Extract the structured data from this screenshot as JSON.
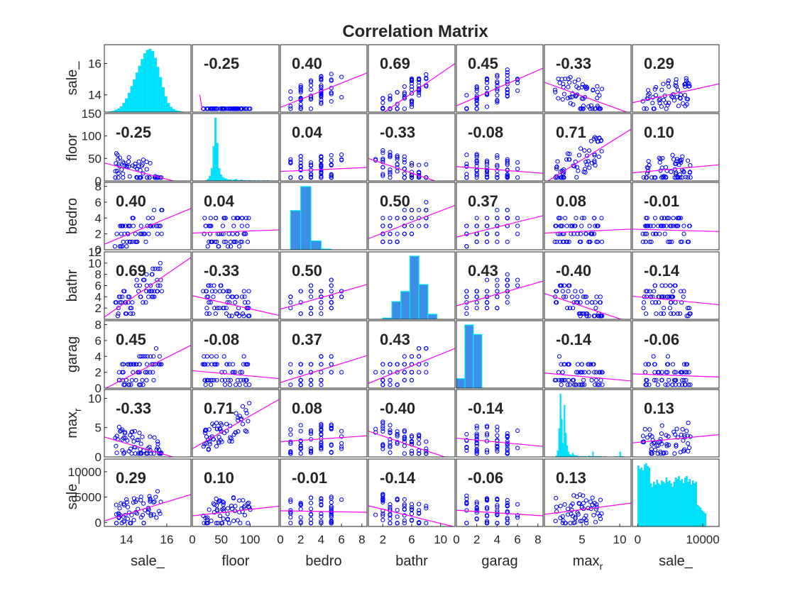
{
  "chart_data": {
    "type": "scatter-matrix",
    "title": "Correlation Matrix",
    "variables": [
      "sale_",
      "floor",
      "bedro",
      "bathr",
      "garag",
      "max_r",
      "sale_"
    ],
    "row_labels": [
      {
        "base": "sale_",
        "sub": ""
      },
      {
        "base": "floor",
        "sub": ""
      },
      {
        "base": "bedro",
        "sub": ""
      },
      {
        "base": "bathr",
        "sub": ""
      },
      {
        "base": "garag",
        "sub": ""
      },
      {
        "base": "max",
        "sub": "r"
      },
      {
        "base": "sale_",
        "sub": ""
      }
    ],
    "col_labels": [
      {
        "base": "sale_",
        "sub": ""
      },
      {
        "base": "floor",
        "sub": ""
      },
      {
        "base": "bedro",
        "sub": ""
      },
      {
        "base": "bathr",
        "sub": ""
      },
      {
        "base": "garag",
        "sub": ""
      },
      {
        "base": "max",
        "sub": "r"
      },
      {
        "base": "sale_",
        "sub": ""
      }
    ],
    "ranges": [
      [
        12.9,
        17.2
      ],
      [
        0,
        150
      ],
      [
        0,
        8.5
      ],
      [
        0,
        12
      ],
      [
        0,
        8.5
      ],
      [
        0,
        11.5
      ],
      [
        -800,
        12500
      ]
    ],
    "x_ticks": [
      [
        14,
        16
      ],
      [
        0,
        50,
        100
      ],
      [
        0,
        2,
        4,
        6,
        8
      ],
      [
        2,
        6,
        10
      ],
      [
        0,
        2,
        4,
        6,
        8
      ],
      [
        5,
        10
      ],
      [
        0,
        10000
      ]
    ],
    "y_ticks": [
      [
        14,
        16
      ],
      [
        0,
        50,
        100,
        150
      ],
      [
        0,
        2,
        4,
        6,
        8
      ],
      [
        2,
        4,
        6,
        8,
        10,
        12
      ],
      [
        0,
        2,
        4,
        6,
        8
      ],
      [
        0,
        5,
        10
      ],
      [
        0,
        5000,
        10000
      ]
    ],
    "correlations": [
      [
        null,
        "-0.25",
        "0.40",
        "0.69",
        "0.45",
        "-0.33",
        "0.29"
      ],
      [
        "-0.25",
        null,
        "0.04",
        "-0.33",
        "-0.08",
        "0.71",
        "0.10"
      ],
      [
        "0.40",
        "0.04",
        null,
        "0.50",
        "0.37",
        "0.08",
        "-0.01"
      ],
      [
        "0.69",
        "-0.33",
        "0.50",
        null,
        "0.43",
        "-0.40",
        "-0.14"
      ],
      [
        "0.45",
        "-0.08",
        "0.37",
        "0.43",
        null,
        "-0.14",
        "-0.06"
      ],
      [
        "-0.33",
        "0.71",
        "0.08",
        "-0.40",
        "-0.14",
        null,
        "0.13"
      ],
      [
        "0.29",
        "0.10",
        "-0.01",
        "-0.14",
        "-0.06",
        "0.13",
        null
      ]
    ],
    "fit_lines": [
      [
        null,
        [
          [
            12.9,
            14.0
          ],
          [
            17.2,
            13.0
          ]
        ],
        [
          [
            0,
            13.2
          ],
          [
            8.5,
            15.4
          ]
        ],
        [
          [
            0,
            12.2
          ],
          [
            12,
            16.0
          ]
        ],
        [
          [
            0,
            13.3
          ],
          [
            8.5,
            15.7
          ]
        ],
        [
          [
            0,
            14.8
          ],
          [
            11.5,
            12.8
          ]
        ],
        [
          [
            -800,
            13.5
          ],
          [
            12500,
            14.7
          ]
        ]
      ],
      [
        [
          [
            12.9,
            40
          ],
          [
            17.2,
            -10
          ]
        ],
        null,
        [
          [
            0,
            21
          ],
          [
            8.5,
            30
          ]
        ],
        [
          [
            0,
            50
          ],
          [
            12,
            -15
          ]
        ],
        [
          [
            0,
            32
          ],
          [
            8.5,
            17
          ]
        ],
        [
          [
            0,
            -5
          ],
          [
            11.5,
            115
          ]
        ],
        [
          [
            -800,
            18
          ],
          [
            12500,
            36
          ]
        ]
      ],
      [
        [
          [
            12.9,
            0.7
          ],
          [
            17.2,
            5.2
          ]
        ],
        [
          [
            0,
            2.1
          ],
          [
            150,
            2.5
          ]
        ],
        null,
        [
          [
            0,
            1.4
          ],
          [
            12,
            5.6
          ]
        ],
        [
          [
            0,
            1.6
          ],
          [
            8.5,
            4.3
          ]
        ],
        [
          [
            0,
            2.1
          ],
          [
            11.5,
            2.6
          ]
        ],
        [
          [
            -800,
            2.6
          ],
          [
            12500,
            2.3
          ]
        ]
      ],
      [
        [
          [
            12.9,
            0.4
          ],
          [
            17.2,
            11.0
          ]
        ],
        [
          [
            0,
            4.2
          ],
          [
            150,
            0.7
          ]
        ],
        [
          [
            0,
            1.8
          ],
          [
            8.5,
            6.2
          ]
        ],
        null,
        [
          [
            0,
            2.4
          ],
          [
            8.5,
            6.8
          ]
        ],
        [
          [
            0,
            4.6
          ],
          [
            11.5,
            -0.6
          ]
        ],
        [
          [
            -800,
            4.1
          ],
          [
            12500,
            2.6
          ]
        ]
      ],
      [
        [
          [
            12.9,
            -0.1
          ],
          [
            17.2,
            5.4
          ]
        ],
        [
          [
            0,
            2.2
          ],
          [
            150,
            1.2
          ]
        ],
        [
          [
            0,
            0.7
          ],
          [
            8.5,
            4.1
          ]
        ],
        [
          [
            0,
            0.6
          ],
          [
            12,
            5.0
          ]
        ],
        null,
        [
          [
            0,
            1.9
          ],
          [
            11.5,
            0.9
          ]
        ],
        [
          [
            -800,
            1.8
          ],
          [
            12500,
            1.4
          ]
        ]
      ],
      [
        [
          [
            12.9,
            3.4
          ],
          [
            17.2,
            -0.9
          ]
        ],
        [
          [
            0,
            1.4
          ],
          [
            150,
            9.8
          ]
        ],
        [
          [
            0,
            2.6
          ],
          [
            8.5,
            3.6
          ]
        ],
        [
          [
            0,
            4.4
          ],
          [
            12,
            -0.6
          ]
        ],
        [
          [
            0,
            3.2
          ],
          [
            8.5,
            1.8
          ]
        ],
        null,
        [
          [
            -800,
            2.4
          ],
          [
            12500,
            3.8
          ]
        ]
      ],
      [
        [
          [
            12.9,
            300
          ],
          [
            17.2,
            5500
          ]
        ],
        [
          [
            0,
            1300
          ],
          [
            150,
            3200
          ]
        ],
        [
          [
            0,
            2300
          ],
          [
            8.5,
            2000
          ]
        ],
        [
          [
            0,
            3300
          ],
          [
            12,
            -900
          ]
        ],
        [
          [
            0,
            2400
          ],
          [
            8.5,
            1300
          ]
        ],
        [
          [
            0,
            1600
          ],
          [
            11.5,
            3800
          ]
        ],
        null
      ]
    ],
    "histograms": [
      {
        "edges": [
          13.15,
          16.8
        ],
        "counts": [
          1,
          2,
          4,
          6,
          10,
          16,
          24,
          34,
          46,
          58,
          70,
          82,
          94,
          104,
          110,
          112,
          108,
          96,
          80,
          62,
          44,
          28,
          16,
          9,
          5,
          3,
          2,
          1
        ]
      },
      {
        "edges": [
          3,
          132
        ],
        "counts": [
          0,
          0,
          0,
          0,
          0,
          0,
          1,
          3,
          8,
          20,
          55,
          100,
          60,
          20,
          10,
          6,
          4,
          3,
          2,
          2,
          1,
          2,
          3,
          1,
          1,
          2,
          1,
          1,
          0,
          1,
          1,
          0,
          1,
          0,
          1,
          0,
          0,
          1,
          0,
          1
        ]
      },
      {
        "edges": [
          1,
          5
        ],
        "counts": [
          62,
          100,
          14,
          1
        ]
      },
      {
        "edges": [
          2,
          9.5
        ],
        "counts": [
          2,
          28,
          44,
          100,
          55,
          8
        ]
      },
      {
        "edges": [
          0,
          2.5
        ],
        "counts": [
          15,
          100,
          85
        ]
      },
      {
        "edges": [
          1.5,
          10.5
        ],
        "counts": [
          2,
          10,
          45,
          100,
          60,
          22,
          82,
          38,
          18,
          8,
          4,
          3,
          6,
          3,
          2,
          2,
          1,
          1,
          1,
          1,
          1,
          1,
          1,
          0,
          2,
          1,
          1,
          8,
          1,
          1,
          1,
          1,
          1,
          1,
          0,
          0,
          1,
          0,
          0,
          0,
          0,
          0,
          0,
          0,
          1,
          0,
          0,
          8,
          1,
          1
        ]
      },
      {
        "edges": [
          0,
          11000
        ],
        "counts": [
          85,
          80,
          82,
          78,
          86,
          88,
          84,
          82,
          60,
          55,
          62,
          58,
          65,
          60,
          58,
          64,
          62,
          60,
          68,
          62,
          64,
          60,
          55,
          62,
          68,
          66,
          70,
          64,
          66,
          60,
          68,
          70,
          62,
          66,
          58,
          64,
          60,
          62,
          30,
          28,
          26,
          22,
          20,
          18,
          0,
          0
        ]
      }
    ]
  }
}
